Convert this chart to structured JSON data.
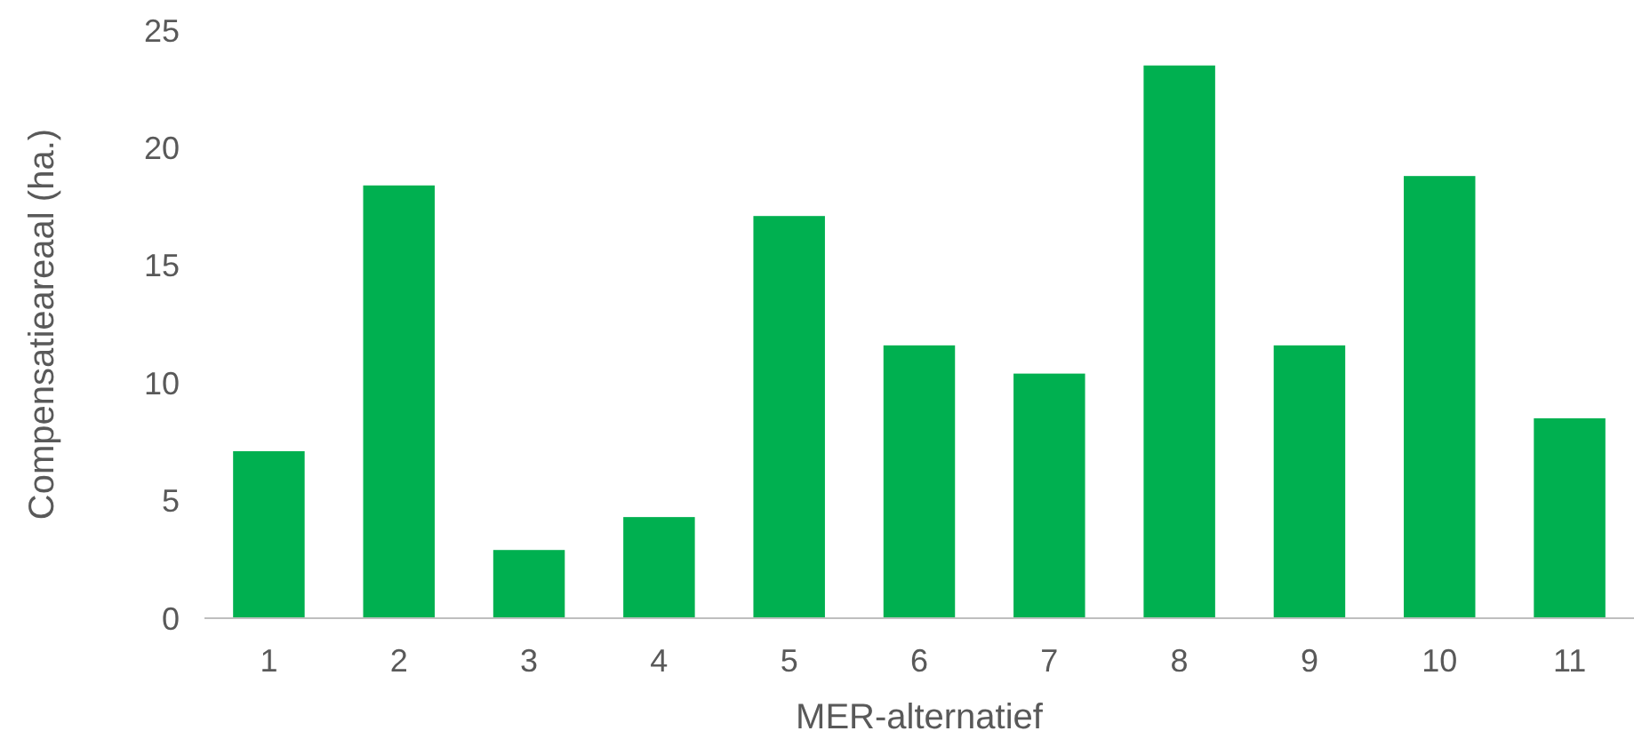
{
  "chart_data": {
    "type": "bar",
    "xlabel": "MER-alternatief",
    "ylabel": "Compensatieareaal (ha.)",
    "categories": [
      "1",
      "2",
      "3",
      "4",
      "5",
      "6",
      "7",
      "8",
      "9",
      "10",
      "11"
    ],
    "values": [
      7.1,
      18.4,
      2.9,
      4.3,
      17.1,
      11.6,
      10.4,
      23.5,
      11.6,
      18.8,
      8.5
    ],
    "color": "#00b050",
    "ylim": [
      0,
      25
    ],
    "yticks": [
      0,
      5,
      10,
      15,
      20,
      25
    ]
  }
}
